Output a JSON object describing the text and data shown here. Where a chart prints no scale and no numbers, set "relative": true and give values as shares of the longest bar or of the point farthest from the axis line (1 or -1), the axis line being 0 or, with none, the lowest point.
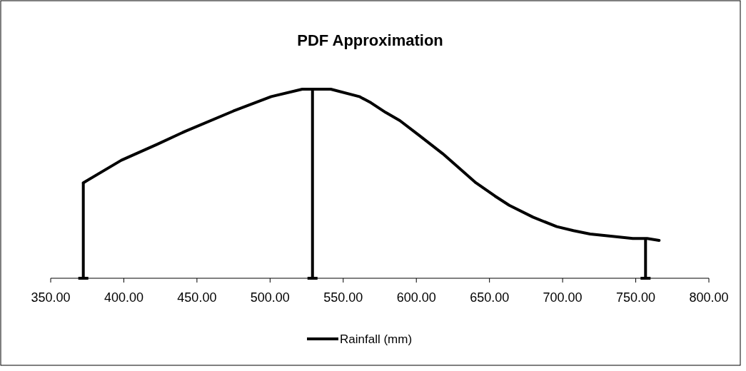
{
  "chart_data": {
    "type": "line",
    "title": "PDF Approximation",
    "relative": true,
    "xlim": [
      350,
      800
    ],
    "xticks": [
      {
        "value": 350,
        "label": "350.00"
      },
      {
        "value": 400,
        "label": "400.00"
      },
      {
        "value": 450,
        "label": "450.00"
      },
      {
        "value": 500,
        "label": "500.00"
      },
      {
        "value": 550,
        "label": "550.00"
      },
      {
        "value": 600,
        "label": "600.00"
      },
      {
        "value": 650,
        "label": "650.00"
      },
      {
        "value": 700,
        "label": "700.00"
      },
      {
        "value": 750,
        "label": "750.00"
      },
      {
        "value": 800,
        "label": "800.00"
      }
    ],
    "series": [
      {
        "name": "Rainfall (mm)",
        "color": "#000000",
        "x": [
          372.3,
          398.3,
          422.7,
          442.2,
          474.8,
          500.8,
          522,
          529,
          541.5,
          561,
          569,
          579,
          588.7,
          601.7,
          618,
          640.7,
          653.7,
          663.5,
          679.8,
          696,
          707.4,
          718.8,
          731.8,
          748,
          757.8,
          766
        ],
        "values": [
          0.505,
          0.624,
          0.708,
          0.778,
          0.884,
          0.961,
          1,
          1,
          1,
          0.961,
          0.928,
          0.877,
          0.834,
          0.757,
          0.659,
          0.505,
          0.435,
          0.386,
          0.323,
          0.273,
          0.252,
          0.234,
          0.224,
          0.21,
          0.21,
          0.2
        ]
      }
    ],
    "ref_lines": [
      {
        "axis": "x",
        "value": 372.3,
        "color": "#000000"
      },
      {
        "axis": "x",
        "value": 529,
        "color": "#000000"
      },
      {
        "axis": "x",
        "value": 756.7,
        "color": "#000000"
      }
    ],
    "legend": "bottom",
    "grid": false,
    "marker": "none",
    "line_style": "solid"
  }
}
